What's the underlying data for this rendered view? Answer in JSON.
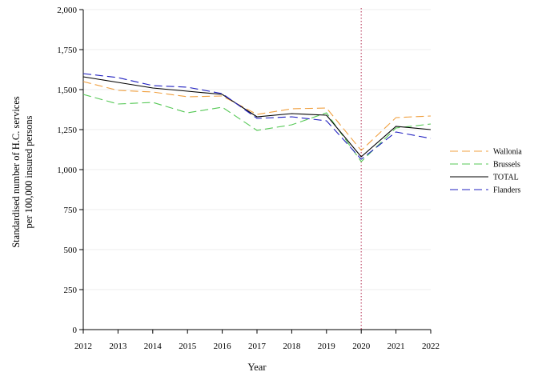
{
  "chart_data": {
    "type": "line",
    "title": "",
    "xlabel": "Year",
    "ylabel_lines": [
      "Standardised number of H.C. services",
      "per 100,000 insured persons"
    ],
    "x": [
      2012,
      2013,
      2014,
      2015,
      2016,
      2017,
      2018,
      2019,
      2020,
      2021,
      2022
    ],
    "x_tick_labels": [
      "2012",
      "2013",
      "2014",
      "2015",
      "2016",
      "2017",
      "2018",
      "2019",
      "2020",
      "2021",
      "2022"
    ],
    "ylim": [
      0,
      2000
    ],
    "y_ticks": [
      0,
      250,
      500,
      750,
      1000,
      1250,
      1500,
      1750,
      2000
    ],
    "y_tick_labels": [
      "0",
      "250",
      "500",
      "750",
      "1,000",
      "1,250",
      "1,500",
      "1,750",
      "2,000"
    ],
    "grid": "horizontal",
    "reference_line": {
      "x": 2020,
      "color": "#c0506e",
      "style": "dotted"
    },
    "legend_position": "right",
    "series": [
      {
        "name": "Wallonia",
        "color": "#f0a040",
        "dash": "dashed",
        "values": [
          1550,
          1495,
          1485,
          1455,
          1460,
          1345,
          1380,
          1385,
          1120,
          1325,
          1335
        ]
      },
      {
        "name": "Brussels",
        "color": "#55c855",
        "dash": "dashed",
        "values": [
          1470,
          1410,
          1420,
          1355,
          1390,
          1245,
          1280,
          1355,
          1050,
          1260,
          1285
        ]
      },
      {
        "name": "TOTAL",
        "color": "#000000",
        "dash": "solid",
        "values": [
          1580,
          1545,
          1510,
          1490,
          1470,
          1330,
          1350,
          1340,
          1080,
          1270,
          1250
        ]
      },
      {
        "name": "Flanders",
        "color": "#2020c0",
        "dash": "dashed",
        "values": [
          1600,
          1575,
          1525,
          1515,
          1475,
          1320,
          1330,
          1305,
          1065,
          1235,
          1195
        ]
      }
    ]
  }
}
